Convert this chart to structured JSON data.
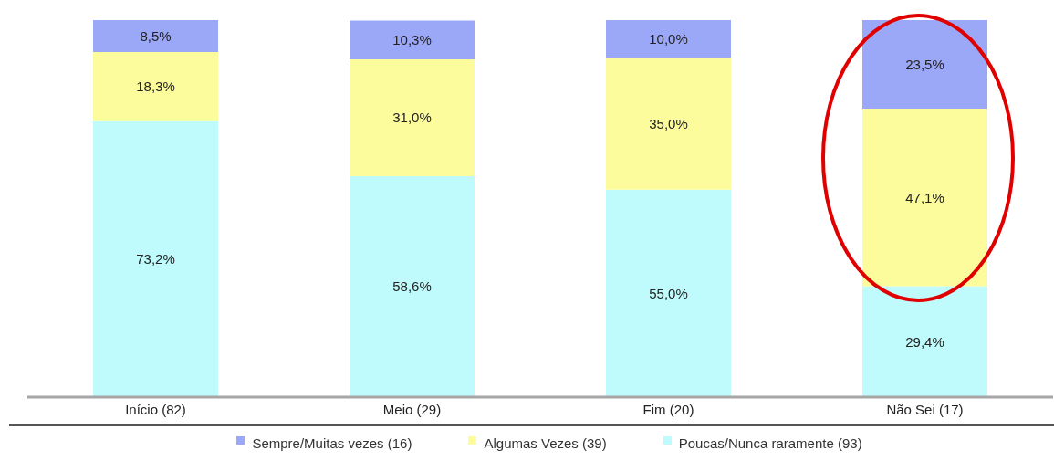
{
  "chart_data": {
    "type": "bar",
    "stacked": true,
    "categories": [
      "Início (82)",
      "Meio (29)",
      "Fim (20)",
      "Não Sei (17)"
    ],
    "series": [
      {
        "name": "Poucas/Nunca raramente (93)",
        "color": "#bffbfc",
        "values": [
          73.2,
          58.6,
          55.0,
          29.4
        ],
        "value_labels": [
          "73,2%",
          "58,6%",
          "55,0%",
          "29,4%"
        ]
      },
      {
        "name": "Algumas Vezes (39)",
        "color": "#fdfc9c",
        "values": [
          18.3,
          31.0,
          35.0,
          47.1
        ],
        "value_labels": [
          "18,3%",
          "31,0%",
          "35,0%",
          "47,1%"
        ]
      },
      {
        "name": "Sempre/Muitas vezes (16)",
        "color": "#9ba7f7",
        "values": [
          8.5,
          10.3,
          10.0,
          23.5
        ],
        "value_labels": [
          "8,5%",
          "10,3%",
          "10,0%",
          "23,5%"
        ]
      }
    ],
    "ylim": [
      0,
      100
    ],
    "tick_labels": "x",
    "legend": "bottom"
  }
}
